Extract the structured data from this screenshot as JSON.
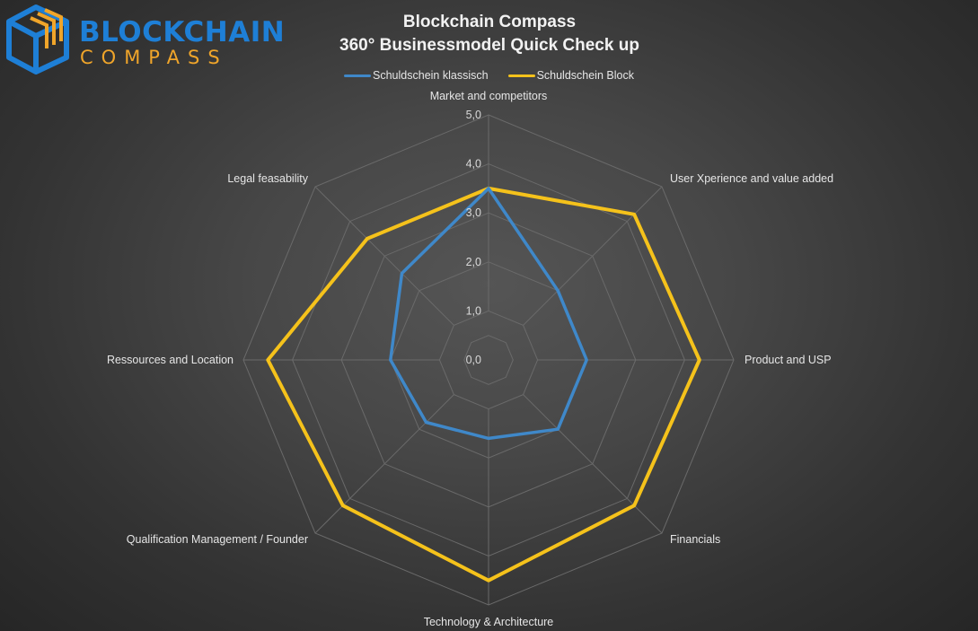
{
  "logo": {
    "line1": "BLOCKCHAIN",
    "line2": "COMPASS",
    "colors": {
      "blue": "#1e7fd6",
      "orange": "#f0a52a"
    }
  },
  "chart_data": {
    "type": "radar",
    "title_line1": "Blockchain Compass",
    "title_line2": "360° Businessmodel Quick Check up",
    "axes": [
      "Market and competitors",
      "User Xperience and value added",
      "Product and USP",
      "Financials",
      "Technology & Architecture",
      "Qualification Management / Founder",
      "Ressources and Location",
      "Legal feasability"
    ],
    "rlim": [
      0,
      5
    ],
    "ticks": [
      "0,0",
      "1,0",
      "2,0",
      "3,0",
      "4,0",
      "5,0"
    ],
    "grid": true,
    "legend_position": "top",
    "series": [
      {
        "name": "Schuldschein klassisch",
        "color": "#3f88c9",
        "values": [
          3.5,
          2.0,
          2.0,
          2.0,
          1.6,
          1.8,
          2.0,
          2.5
        ]
      },
      {
        "name": "Schuldschein Block",
        "color": "#f5c21b",
        "values": [
          3.5,
          4.2,
          4.3,
          4.2,
          4.5,
          4.2,
          4.5,
          3.5
        ]
      }
    ]
  }
}
